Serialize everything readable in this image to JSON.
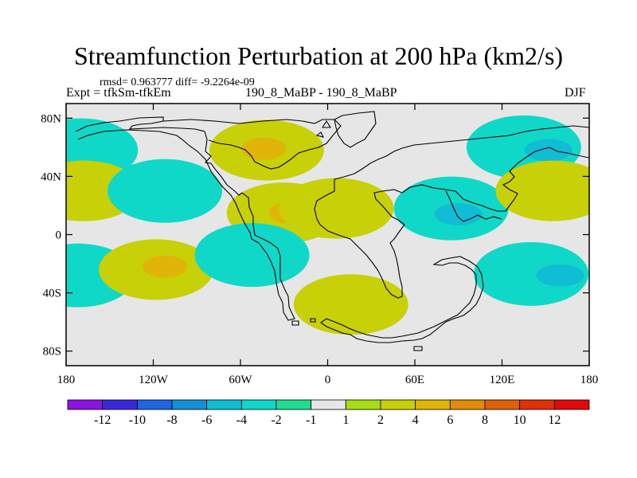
{
  "header": {
    "title": "Streamfunction Perturbation at 200 hPa (km2/s)",
    "stats": "rmsd= 0.963777 diff= -9.2264e-09",
    "experiment": "Expt = tfkSm-tfkEm",
    "runs": "190_8_MaBP - 190_8_MaBP",
    "season": "DJF"
  },
  "chart_data": {
    "type": "contour-map",
    "title": "Streamfunction Perturbation at 200 hPa (km2/s)",
    "units": "km2/s",
    "projection": "cylindrical equidistant",
    "lon_range": [
      -180,
      180
    ],
    "lat_range": [
      -90,
      90
    ],
    "x_ticks": [
      {
        "value": -180,
        "label": "180"
      },
      {
        "value": -120,
        "label": "120W"
      },
      {
        "value": -60,
        "label": "60W"
      },
      {
        "value": 0,
        "label": "0"
      },
      {
        "value": 60,
        "label": "60E"
      },
      {
        "value": 120,
        "label": "120E"
      },
      {
        "value": 180,
        "label": "180"
      }
    ],
    "y_ticks": [
      {
        "value": 80,
        "label": "80N"
      },
      {
        "value": 40,
        "label": "40N"
      },
      {
        "value": 0,
        "label": "0"
      },
      {
        "value": -40,
        "label": "40S"
      },
      {
        "value": -80,
        "label": "80S"
      }
    ],
    "colorbar": {
      "colors": [
        "#8c14e0",
        "#3c28dc",
        "#1f64e0",
        "#138fd8",
        "#10bdd4",
        "#10d8c8",
        "#20dc90",
        "#e6e6e6",
        "#a8dc14",
        "#c8d008",
        "#e0b408",
        "#e08c08",
        "#e06008",
        "#e03008",
        "#e00a0a"
      ],
      "labels": [
        "-12",
        "-10",
        "-8",
        "-6",
        "-4",
        "-2",
        "-1",
        "1",
        "2",
        "4",
        "6",
        "8",
        "10",
        "12"
      ]
    },
    "anomalies": [
      {
        "lon": -170,
        "lat": 58,
        "level": "-2"
      },
      {
        "lon": -168,
        "lat": 30,
        "level": "2"
      },
      {
        "lon": -172,
        "lat": -28,
        "level": "-2"
      },
      {
        "lon": -118,
        "lat": -24,
        "level": "2"
      },
      {
        "lon": -112,
        "lat": -22,
        "level": "4"
      },
      {
        "lon": -112,
        "lat": 30,
        "level": "-2"
      },
      {
        "lon": -42,
        "lat": 58,
        "level": "2"
      },
      {
        "lon": -44,
        "lat": 59,
        "level": "4"
      },
      {
        "lon": -30,
        "lat": 15,
        "level": "2"
      },
      {
        "lon": -25,
        "lat": 15,
        "level": "4"
      },
      {
        "lon": -52,
        "lat": -14,
        "level": "-2"
      },
      {
        "lon": 6,
        "lat": 18,
        "level": "2"
      },
      {
        "lon": 16,
        "lat": -48,
        "level": "2"
      },
      {
        "lon": 85,
        "lat": 18,
        "level": "-2"
      },
      {
        "lon": 90,
        "lat": 14,
        "level": "-4"
      },
      {
        "lon": 135,
        "lat": 60,
        "level": "-2"
      },
      {
        "lon": 152,
        "lat": 58,
        "level": "-4"
      },
      {
        "lon": 155,
        "lat": 30,
        "level": "2"
      },
      {
        "lon": 140,
        "lat": -27,
        "level": "-2"
      },
      {
        "lon": 160,
        "lat": -28,
        "level": "-4"
      }
    ]
  }
}
